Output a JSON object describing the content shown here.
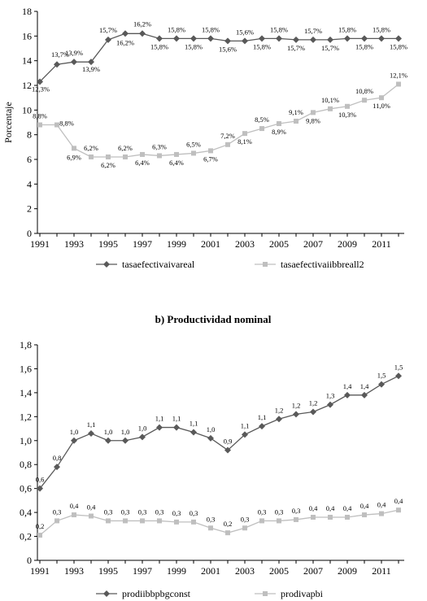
{
  "chart_data": [
    {
      "type": "line",
      "title": "",
      "xlabel": "",
      "ylabel": "Porcentaje",
      "ylim": [
        0,
        18
      ],
      "yticks": [
        "0",
        "2",
        "4",
        "6",
        "8",
        "10",
        "12",
        "14",
        "16",
        "18"
      ],
      "xticks": [
        "1991",
        "1993",
        "1995",
        "1997",
        "1999",
        "2001",
        "2003",
        "2005",
        "2007",
        "2009",
        "2011"
      ],
      "grid": false,
      "legend": "bottom",
      "x": [
        1991,
        1992,
        1993,
        1994,
        1995,
        1996,
        1997,
        1998,
        1999,
        2000,
        2001,
        2002,
        2003,
        2004,
        2005,
        2006,
        2007,
        2008,
        2009,
        2010,
        2011,
        2012
      ],
      "series": [
        {
          "name": "tasaefectivaivareal",
          "color": "#595959",
          "marker": "diamond",
          "values": [
            12.3,
            13.7,
            13.9,
            13.9,
            15.7,
            16.2,
            16.2,
            15.8,
            15.8,
            15.8,
            15.8,
            15.6,
            15.6,
            15.8,
            15.8,
            15.7,
            15.7,
            15.7,
            15.8,
            15.8,
            15.8,
            15.8
          ],
          "labels": [
            "12,3%",
            "13,7%",
            "13,9%",
            "13,9%",
            "15,7%",
            "16,2%",
            "16,2%",
            "15,8%",
            "15,8%",
            "15,8%",
            "15,8%",
            "15,6%",
            "15,6%",
            "15,8%",
            "15,8%",
            "15,7%",
            "15,7%",
            "15,7%",
            "15,8%",
            "15,8%",
            "15,8%",
            "15,8%"
          ]
        },
        {
          "name": "tasaefectivaiibbreall2",
          "color": "#bfbfbf",
          "marker": "square",
          "values": [
            8.8,
            8.8,
            6.9,
            6.2,
            6.2,
            6.2,
            6.4,
            6.3,
            6.4,
            6.5,
            6.7,
            7.2,
            8.1,
            8.5,
            8.9,
            9.1,
            9.8,
            10.1,
            10.3,
            10.8,
            11.0,
            12.1
          ],
          "labels": [
            "8,8%",
            "8,8%",
            "6,9%",
            "6,2%",
            "6,2%",
            "6,2%",
            "6,4%",
            "6,3%",
            "6,4%",
            "6,5%",
            "6,7%",
            "7,2%",
            "8,1%",
            "8,5%",
            "8,9%",
            "9,1%",
            "9,8%",
            "10,1%",
            "10,3%",
            "10,8%",
            "11,0%",
            "12,1%"
          ]
        }
      ]
    },
    {
      "type": "line",
      "title": "b) Productividad nominal",
      "xlabel": "",
      "ylabel": "",
      "ylim": [
        0,
        1.8
      ],
      "yticks": [
        "0",
        "0,2",
        "0,4",
        "0,6",
        "0,8",
        "1,0",
        "1,2",
        "1,4",
        "1,6",
        "1,8"
      ],
      "xticks": [
        "1991",
        "1993",
        "1995",
        "1997",
        "1999",
        "2001",
        "2003",
        "2005",
        "2007",
        "2009",
        "2011"
      ],
      "grid": false,
      "legend": "bottom",
      "x": [
        1991,
        1992,
        1993,
        1994,
        1995,
        1996,
        1997,
        1998,
        1999,
        2000,
        2001,
        2002,
        2003,
        2004,
        2005,
        2006,
        2007,
        2008,
        2009,
        2010,
        2011,
        2012
      ],
      "series": [
        {
          "name": "prodiibbpbgconst",
          "color": "#595959",
          "marker": "diamond",
          "values": [
            0.6,
            0.78,
            1.0,
            1.06,
            1.0,
            1.0,
            1.03,
            1.11,
            1.11,
            1.07,
            1.02,
            0.92,
            1.05,
            1.12,
            1.18,
            1.22,
            1.24,
            1.3,
            1.38,
            1.38,
            1.47,
            1.54
          ],
          "labels": [
            "0,6",
            "0,8",
            "1,0",
            "1,1",
            "1,0",
            "1,0",
            "1,0",
            "1,1",
            "1,1",
            "1,1",
            "1,0",
            "0,9",
            "1,1",
            "1,1",
            "1,2",
            "1,2",
            "1,2",
            "1,3",
            "1,4",
            "1,4",
            "1,5",
            "1,5"
          ]
        },
        {
          "name": "prodivapbi",
          "color": "#bfbfbf",
          "marker": "square",
          "values": [
            0.21,
            0.33,
            0.38,
            0.37,
            0.33,
            0.33,
            0.33,
            0.33,
            0.32,
            0.32,
            0.27,
            0.23,
            0.27,
            0.33,
            0.33,
            0.34,
            0.36,
            0.36,
            0.36,
            0.38,
            0.39,
            0.42
          ],
          "labels": [
            "0,2",
            "0,3",
            "0,4",
            "0,4",
            "0,3",
            "0,3",
            "0,3",
            "0,3",
            "0,3",
            "0,3",
            "0,3",
            "0,2",
            "0,3",
            "0,3",
            "0,3",
            "0,3",
            "0,4",
            "0,4",
            "0,4",
            "0,4",
            "0,4",
            "0,4"
          ]
        }
      ]
    }
  ]
}
